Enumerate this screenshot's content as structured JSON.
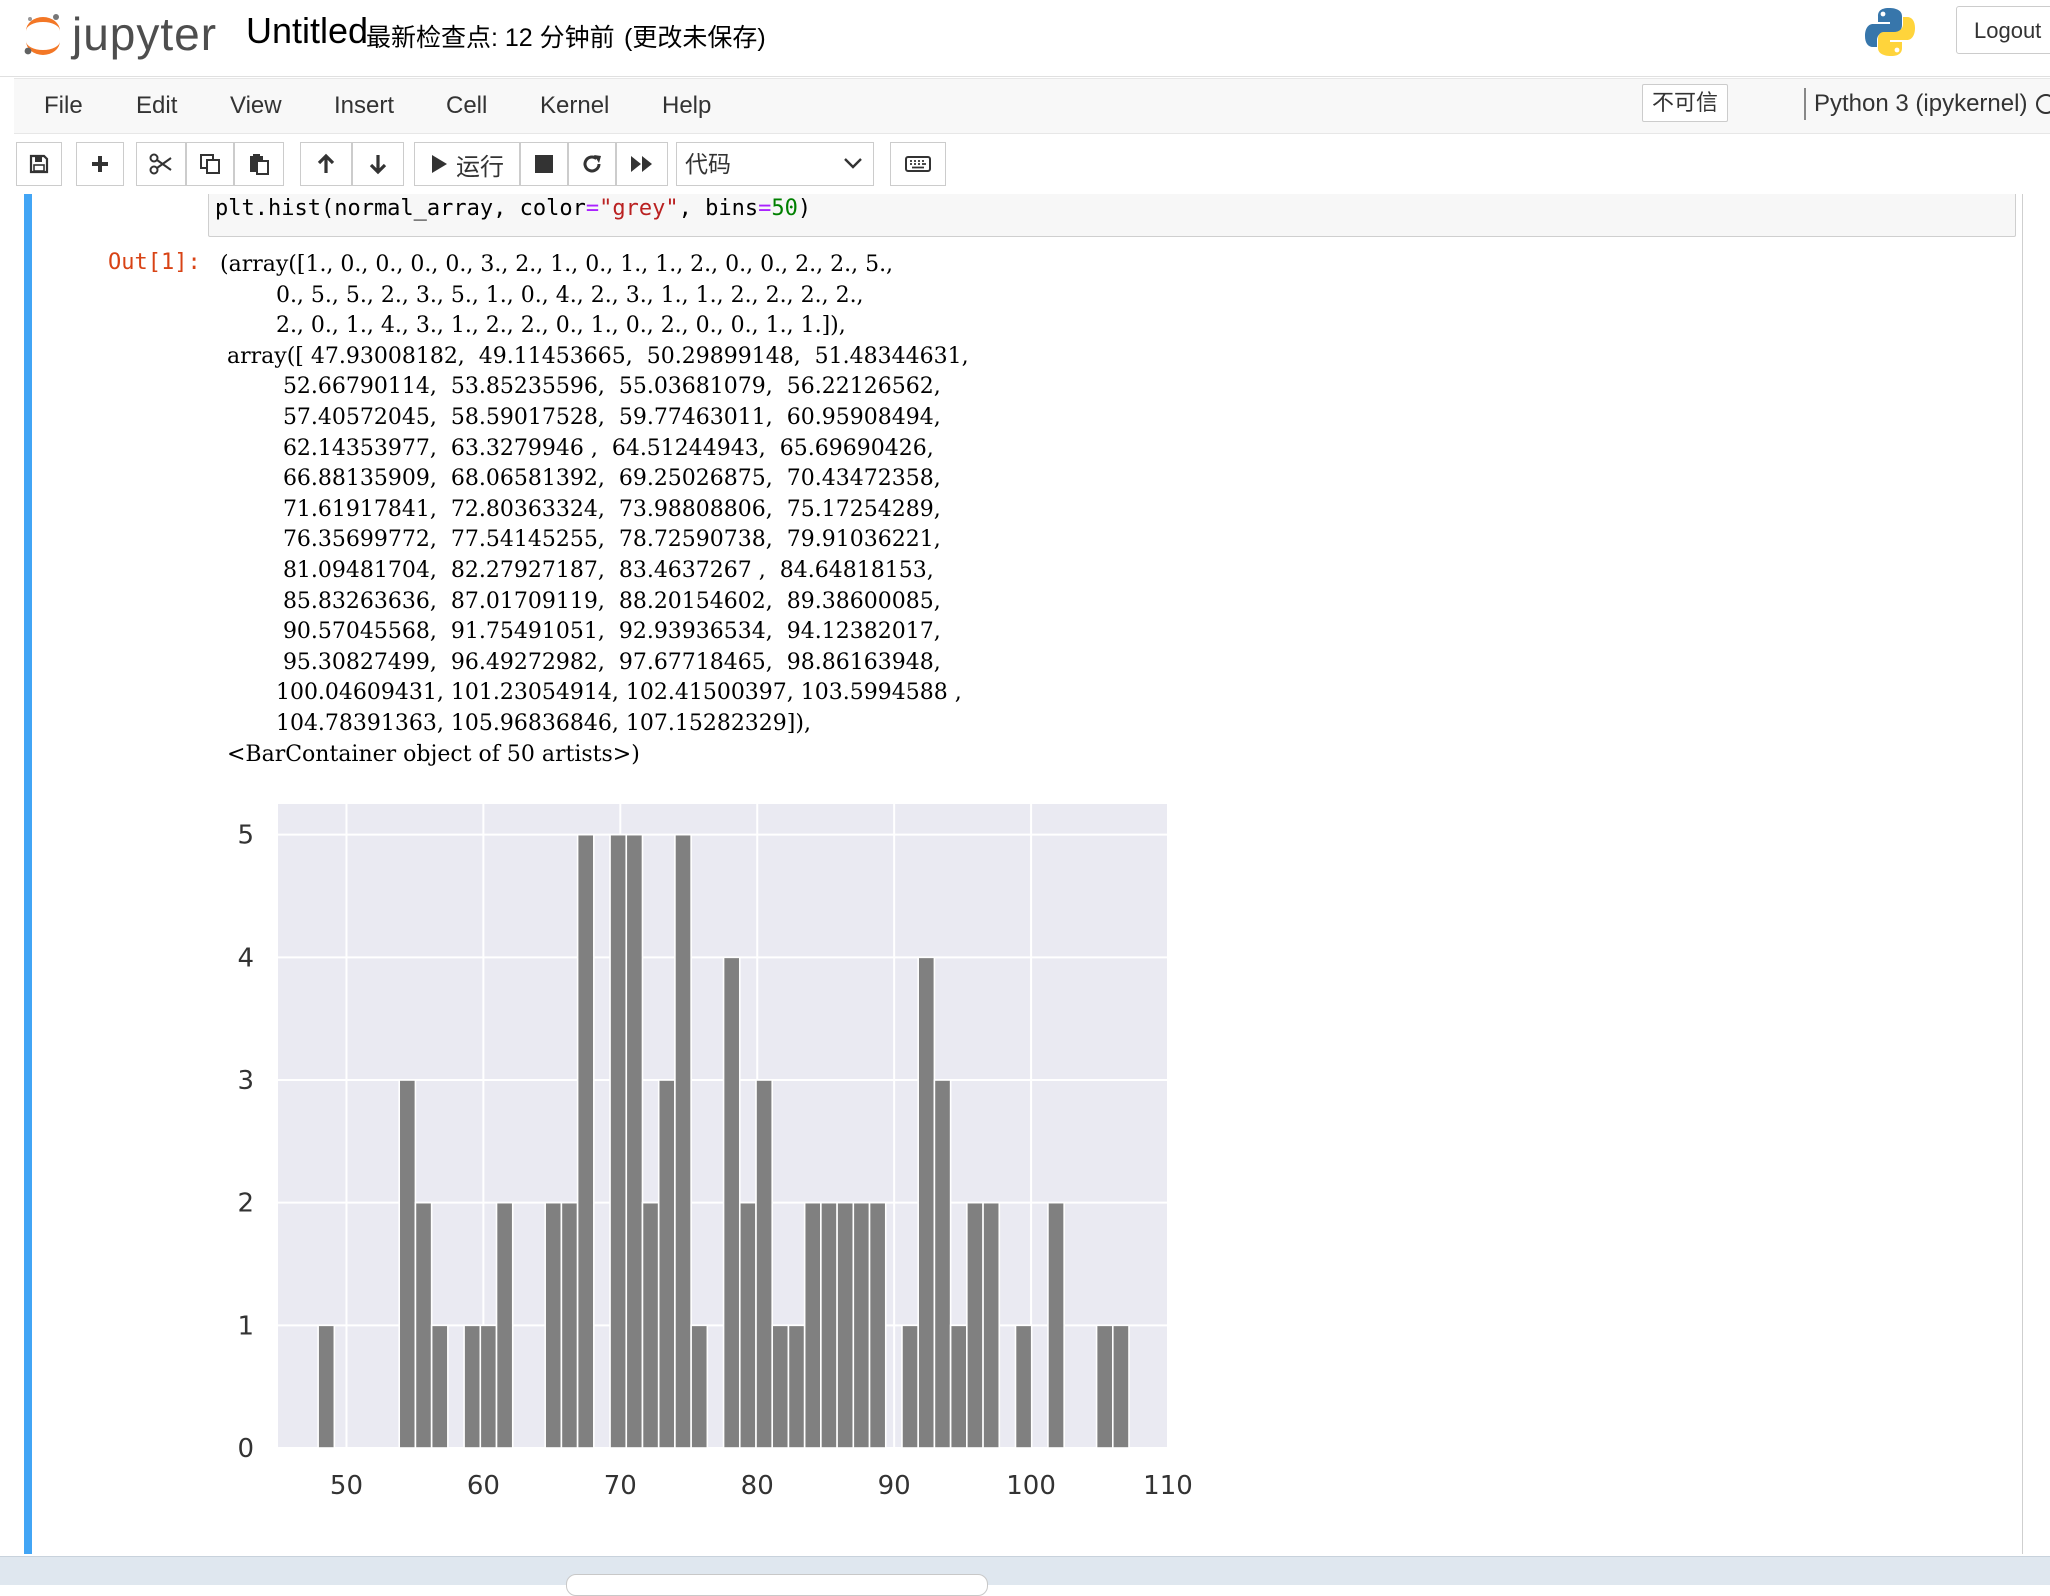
{
  "header": {
    "logo_text": "jupyter",
    "notebook_title": "Untitled",
    "checkpoint": "最新检查点: 12 分钟前",
    "save_status": "(更改未保存)",
    "logout_label": "Logout"
  },
  "menubar": {
    "items": [
      "File",
      "Edit",
      "View",
      "Insert",
      "Cell",
      "Kernel",
      "Help"
    ],
    "trust_label": "不可信",
    "kernel_name": "Python 3 (ipykernel)"
  },
  "toolbar": {
    "run_label": "运行",
    "cell_type": "代码"
  },
  "cell": {
    "code_parts": [
      "plt.hist(normal_array, color",
      "=",
      "\"grey\"",
      ", bins",
      "=",
      "50",
      ")"
    ],
    "out_prompt": "Out[1]:",
    "output_text": "(array([1., 0., 0., 0., 0., 3., 2., 1., 0., 1., 1., 2., 0., 0., 2., 2., 5.,\n        0., 5., 5., 2., 3., 5., 1., 0., 4., 2., 3., 1., 1., 2., 2., 2., 2.,\n        2., 0., 1., 4., 3., 1., 2., 2., 0., 1., 0., 2., 0., 0., 1., 1.]),\n array([ 47.93008182,  49.11453665,  50.29899148,  51.48344631,\n         52.66790114,  53.85235596,  55.03681079,  56.22126562,\n         57.40572045,  58.59017528,  59.77463011,  60.95908494,\n         62.14353977,  63.3279946 ,  64.51244943,  65.69690426,\n         66.88135909,  68.06581392,  69.25026875,  70.43472358,\n         71.61917841,  72.80363324,  73.98808806,  75.17254289,\n         76.35699772,  77.54145255,  78.72590738,  79.91036221,\n         81.09481704,  82.27927187,  83.4637267 ,  84.64818153,\n         85.83263636,  87.01709119,  88.20154602,  89.38600085,\n         90.57045568,  91.75491051,  92.93936534,  94.12382017,\n         95.30827499,  96.49272982,  97.67718465,  98.86163948,\n        100.04609431, 101.23054914, 102.41500397, 103.5994588 ,\n        104.78391363, 105.96836846, 107.15282329]),\n <BarContainer object of 50 artists>)"
  },
  "chart_data": {
    "type": "bar",
    "bar_color": "#808080",
    "background": "#eaeaf2",
    "grid": true,
    "xlim": [
      45.0,
      110.0
    ],
    "ylim": [
      0,
      5.25
    ],
    "xticks": [
      50,
      60,
      70,
      80,
      90,
      100,
      110
    ],
    "yticks": [
      0,
      1,
      2,
      3,
      4,
      5
    ],
    "bin_edges": [
      47.93008182,
      49.11453665,
      50.29899148,
      51.48344631,
      52.66790114,
      53.85235596,
      55.03681079,
      56.22126562,
      57.40572045,
      58.59017528,
      59.77463011,
      60.95908494,
      62.14353977,
      63.3279946,
      64.51244943,
      65.69690426,
      66.88135909,
      68.06581392,
      69.25026875,
      70.43472358,
      71.61917841,
      72.80363324,
      73.98808806,
      75.17254289,
      76.35699772,
      77.54145255,
      78.72590738,
      79.91036221,
      81.09481704,
      82.27927187,
      83.4637267,
      84.64818153,
      85.83263636,
      87.01709119,
      88.20154602,
      89.38600085,
      90.57045568,
      91.75491051,
      92.93936534,
      94.12382017,
      95.30827499,
      96.49272982,
      97.67718465,
      98.86163948,
      100.04609431,
      101.23054914,
      102.41500397,
      103.5994588,
      104.78391363,
      105.96836846,
      107.15282329
    ],
    "counts": [
      1,
      0,
      0,
      0,
      0,
      3,
      2,
      1,
      0,
      1,
      1,
      2,
      0,
      0,
      2,
      2,
      5,
      0,
      5,
      5,
      2,
      3,
      5,
      1,
      0,
      4,
      2,
      3,
      1,
      1,
      2,
      2,
      2,
      2,
      2,
      0,
      1,
      4,
      3,
      1,
      2,
      2,
      0,
      1,
      0,
      2,
      0,
      0,
      1,
      1
    ]
  }
}
